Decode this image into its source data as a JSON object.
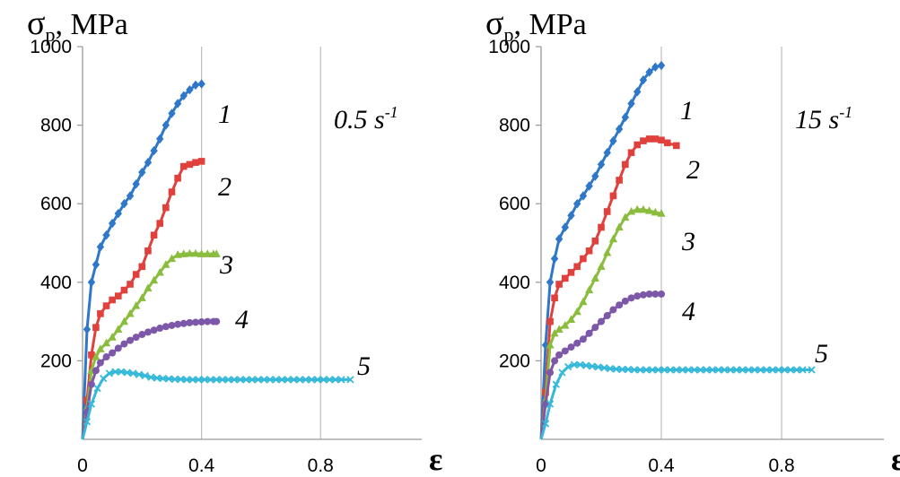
{
  "chart_data": [
    {
      "type": "line",
      "ylabel": "σp, MPa",
      "xlabel": "ε",
      "annotation": {
        "text": "0.5 s",
        "sup": "-1"
      },
      "x_ticks": [
        "0",
        "0.4",
        "0.8"
      ],
      "y_ticks": [
        "200",
        "400",
        "600",
        "800",
        "1000"
      ],
      "xlim": [
        0,
        1.14
      ],
      "ylim": [
        0,
        1000
      ],
      "grid": "vertical lines at x ticks",
      "series": [
        {
          "name": "1",
          "color": "#2f77c8",
          "marker": "diamond",
          "x": [
            0,
            0.015,
            0.03,
            0.045,
            0.06,
            0.08,
            0.1,
            0.12,
            0.14,
            0.16,
            0.18,
            0.2,
            0.22,
            0.24,
            0.26,
            0.28,
            0.3,
            0.32,
            0.34,
            0.36,
            0.38,
            0.4
          ],
          "y": [
            0,
            280,
            400,
            445,
            490,
            520,
            550,
            575,
            600,
            620,
            650,
            680,
            705,
            735,
            765,
            800,
            830,
            855,
            875,
            890,
            902,
            905
          ]
        },
        {
          "name": "2",
          "color": "#e0413c",
          "marker": "square",
          "x": [
            0,
            0.015,
            0.03,
            0.045,
            0.06,
            0.08,
            0.1,
            0.12,
            0.14,
            0.16,
            0.18,
            0.2,
            0.22,
            0.24,
            0.26,
            0.28,
            0.3,
            0.32,
            0.34,
            0.36,
            0.38,
            0.4
          ],
          "y": [
            0,
            100,
            215,
            285,
            320,
            340,
            355,
            365,
            380,
            395,
            420,
            440,
            480,
            520,
            550,
            590,
            630,
            665,
            695,
            700,
            705,
            708
          ]
        },
        {
          "name": "3",
          "color": "#8abc3e",
          "marker": "triangle",
          "x": [
            0,
            0.015,
            0.03,
            0.045,
            0.06,
            0.08,
            0.1,
            0.12,
            0.14,
            0.16,
            0.18,
            0.2,
            0.22,
            0.24,
            0.26,
            0.28,
            0.3,
            0.32,
            0.34,
            0.36,
            0.38,
            0.4,
            0.42,
            0.44,
            0.45
          ],
          "y": [
            0,
            80,
            175,
            210,
            230,
            245,
            260,
            280,
            300,
            320,
            340,
            360,
            385,
            405,
            425,
            445,
            460,
            470,
            472,
            473,
            473,
            472,
            472,
            472,
            472
          ]
        },
        {
          "name": "4",
          "color": "#7e58a8",
          "marker": "circle",
          "x": [
            0,
            0.015,
            0.03,
            0.045,
            0.06,
            0.08,
            0.1,
            0.12,
            0.14,
            0.16,
            0.18,
            0.2,
            0.22,
            0.24,
            0.26,
            0.28,
            0.3,
            0.32,
            0.34,
            0.36,
            0.38,
            0.4,
            0.42,
            0.44,
            0.45
          ],
          "y": [
            0,
            70,
            140,
            175,
            195,
            210,
            220,
            232,
            243,
            252,
            260,
            267,
            273,
            278,
            283,
            287,
            290,
            293,
            295,
            297,
            298,
            299,
            300,
            300,
            300
          ]
        },
        {
          "name": "5",
          "color": "#36b8d8",
          "marker": "x",
          "x": [
            0,
            0.015,
            0.03,
            0.05,
            0.07,
            0.09,
            0.11,
            0.13,
            0.15,
            0.17,
            0.19,
            0.21,
            0.23,
            0.25,
            0.27,
            0.29,
            0.31,
            0.33,
            0.35,
            0.37,
            0.39,
            0.41,
            0.43,
            0.45,
            0.47,
            0.49,
            0.51,
            0.53,
            0.55,
            0.57,
            0.59,
            0.61,
            0.63,
            0.65,
            0.67,
            0.69,
            0.71,
            0.73,
            0.75,
            0.77,
            0.79,
            0.81,
            0.83,
            0.85,
            0.87,
            0.9
          ],
          "y": [
            0,
            45,
            90,
            130,
            155,
            168,
            172,
            172,
            170,
            168,
            165,
            162,
            158,
            156,
            155,
            154,
            153,
            153,
            152,
            152,
            152,
            152,
            152,
            152,
            152,
            152,
            152,
            152,
            152,
            152,
            152,
            152,
            152,
            152,
            152,
            152,
            152,
            152,
            152,
            152,
            152,
            152,
            152,
            152,
            152,
            152
          ]
        }
      ]
    },
    {
      "type": "line",
      "ylabel": "σp, MPa",
      "xlabel": "ε",
      "annotation": {
        "text": "15 s",
        "sup": "-1"
      },
      "x_ticks": [
        "0",
        "0.4",
        "0.8"
      ],
      "y_ticks": [
        "200",
        "400",
        "600",
        "800",
        "1000"
      ],
      "xlim": [
        0,
        1.14
      ],
      "ylim": [
        0,
        1000
      ],
      "grid": "vertical lines at x ticks",
      "series": [
        {
          "name": "1",
          "color": "#2f77c8",
          "marker": "diamond",
          "x": [
            0,
            0.015,
            0.03,
            0.045,
            0.06,
            0.08,
            0.1,
            0.12,
            0.14,
            0.16,
            0.18,
            0.2,
            0.22,
            0.24,
            0.26,
            0.28,
            0.3,
            0.32,
            0.34,
            0.36,
            0.38,
            0.4
          ],
          "y": [
            0,
            240,
            400,
            460,
            510,
            540,
            570,
            600,
            620,
            645,
            670,
            700,
            730,
            760,
            790,
            820,
            855,
            885,
            915,
            935,
            948,
            952
          ]
        },
        {
          "name": "2",
          "color": "#e0413c",
          "marker": "square",
          "x": [
            0,
            0.015,
            0.03,
            0.045,
            0.06,
            0.08,
            0.1,
            0.12,
            0.14,
            0.16,
            0.18,
            0.2,
            0.22,
            0.24,
            0.26,
            0.28,
            0.3,
            0.32,
            0.34,
            0.36,
            0.38,
            0.4,
            0.42,
            0.45
          ],
          "y": [
            0,
            120,
            300,
            360,
            395,
            410,
            425,
            440,
            460,
            480,
            505,
            540,
            580,
            620,
            660,
            700,
            730,
            750,
            760,
            765,
            765,
            762,
            755,
            748
          ]
        },
        {
          "name": "3",
          "color": "#8abc3e",
          "marker": "triangle",
          "x": [
            0,
            0.015,
            0.03,
            0.045,
            0.06,
            0.08,
            0.1,
            0.12,
            0.14,
            0.16,
            0.18,
            0.2,
            0.22,
            0.24,
            0.26,
            0.28,
            0.3,
            0.32,
            0.34,
            0.36,
            0.38,
            0.4
          ],
          "y": [
            0,
            100,
            240,
            270,
            280,
            290,
            305,
            325,
            350,
            380,
            410,
            440,
            475,
            510,
            540,
            565,
            580,
            585,
            585,
            582,
            578,
            575
          ]
        },
        {
          "name": "4",
          "color": "#7e58a8",
          "marker": "circle",
          "x": [
            0,
            0.015,
            0.03,
            0.045,
            0.06,
            0.08,
            0.1,
            0.12,
            0.14,
            0.16,
            0.18,
            0.2,
            0.22,
            0.24,
            0.26,
            0.28,
            0.3,
            0.32,
            0.34,
            0.36,
            0.38,
            0.4
          ],
          "y": [
            0,
            90,
            170,
            200,
            215,
            225,
            235,
            245,
            255,
            270,
            285,
            300,
            315,
            330,
            342,
            352,
            360,
            365,
            368,
            370,
            370,
            370
          ]
        },
        {
          "name": "5",
          "color": "#36b8d8",
          "marker": "x",
          "x": [
            0,
            0.015,
            0.03,
            0.05,
            0.07,
            0.09,
            0.11,
            0.13,
            0.15,
            0.17,
            0.19,
            0.21,
            0.23,
            0.25,
            0.27,
            0.29,
            0.31,
            0.33,
            0.35,
            0.37,
            0.39,
            0.41,
            0.43,
            0.45,
            0.47,
            0.49,
            0.51,
            0.53,
            0.55,
            0.57,
            0.59,
            0.61,
            0.63,
            0.65,
            0.67,
            0.69,
            0.71,
            0.73,
            0.75,
            0.77,
            0.79,
            0.81,
            0.83,
            0.85,
            0.87,
            0.9
          ],
          "y": [
            0,
            40,
            90,
            140,
            170,
            185,
            190,
            190,
            188,
            186,
            184,
            182,
            180,
            179,
            178,
            178,
            177,
            177,
            177,
            177,
            177,
            177,
            177,
            177,
            177,
            177,
            177,
            177,
            177,
            177,
            177,
            177,
            177,
            177,
            177,
            177,
            177,
            177,
            177,
            177,
            177,
            177,
            177,
            177,
            177,
            177
          ]
        }
      ]
    }
  ]
}
